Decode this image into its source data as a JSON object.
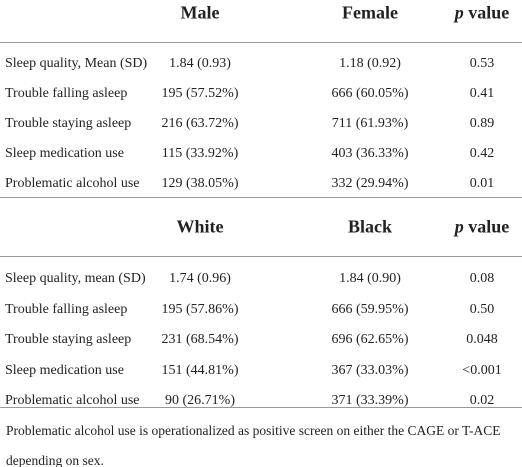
{
  "sections": [
    {
      "header": [
        "Male",
        "Female"
      ],
      "p_header": {
        "italic": "p",
        "rest": "value"
      },
      "rows": [
        [
          "Sleep quality, Mean (SD)",
          "1.84 (0.93)",
          "1.18 (0.92)",
          "0.53"
        ],
        [
          "Trouble falling asleep",
          "195 (57.52%)",
          "666 (60.05%)",
          "0.41"
        ],
        [
          "Trouble staying asleep",
          "216 (63.72%)",
          "711 (61.93%)",
          "0.89"
        ],
        [
          "Sleep medication use",
          "115 (33.92%)",
          "403 (36.33%)",
          "0.42"
        ],
        [
          "Problematic alcohol use",
          "129 (38.05%)",
          "332 (29.94%)",
          "0.01"
        ]
      ]
    },
    {
      "header": [
        "White",
        "Black"
      ],
      "p_header": {
        "italic": "p",
        "rest": "value"
      },
      "rows": [
        [
          "Sleep quality, mean (SD)",
          "1.74 (0.96)",
          "1.84 (0.90)",
          "0.08"
        ],
        [
          "Trouble falling asleep",
          "195 (57.86%)",
          "666 (59.95%)",
          "0.50"
        ],
        [
          "Trouble staying asleep",
          "231 (68.54%)",
          "696 (62.65%)",
          "0.048"
        ],
        [
          "Sleep medication use",
          "151 (44.81%)",
          "367 (33.03%)",
          "<0.001"
        ],
        [
          "Problematic alcohol use",
          "90 (26.71%)",
          "371 (33.39%)",
          "0.02"
        ]
      ]
    }
  ],
  "footnote": "Problematic alcohol use is operationalized as positive screen on either the CAGE or T-ACE depending on sex."
}
